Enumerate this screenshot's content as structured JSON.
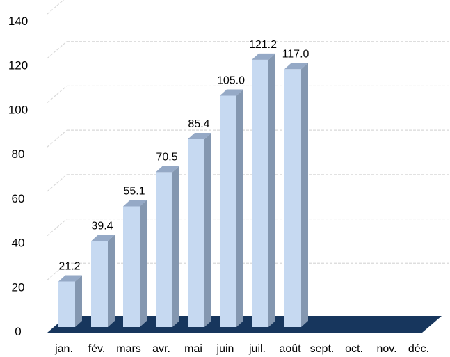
{
  "chart_data": {
    "type": "bar",
    "categories": [
      "jan.",
      "fév.",
      "mars",
      "avr.",
      "mai",
      "juin",
      "juil.",
      "août",
      "sept.",
      "oct.",
      "nov.",
      "déc."
    ],
    "values": [
      21.2,
      39.4,
      55.1,
      70.5,
      85.4,
      105.0,
      121.2,
      117.0,
      null,
      null,
      null,
      null
    ],
    "value_labels": [
      "21.2",
      "39.4",
      "55.1",
      "70.5",
      "85.4",
      "105.0",
      "121.2",
      "117.0",
      "",
      "",
      "",
      ""
    ],
    "y_ticks": [
      "0",
      "20",
      "40",
      "60",
      "80",
      "100",
      "120",
      "140"
    ],
    "ylim": [
      0,
      140
    ],
    "title": "",
    "xlabel": "",
    "ylabel": "",
    "grid": true,
    "legend": false,
    "style": "3d-column"
  },
  "colors": {
    "bar_front": "#c6d9f1",
    "bar_side": "#8497b0",
    "bar_top": "#95a9c6",
    "floor": "#17365d",
    "grid": "#d9d9d9"
  }
}
